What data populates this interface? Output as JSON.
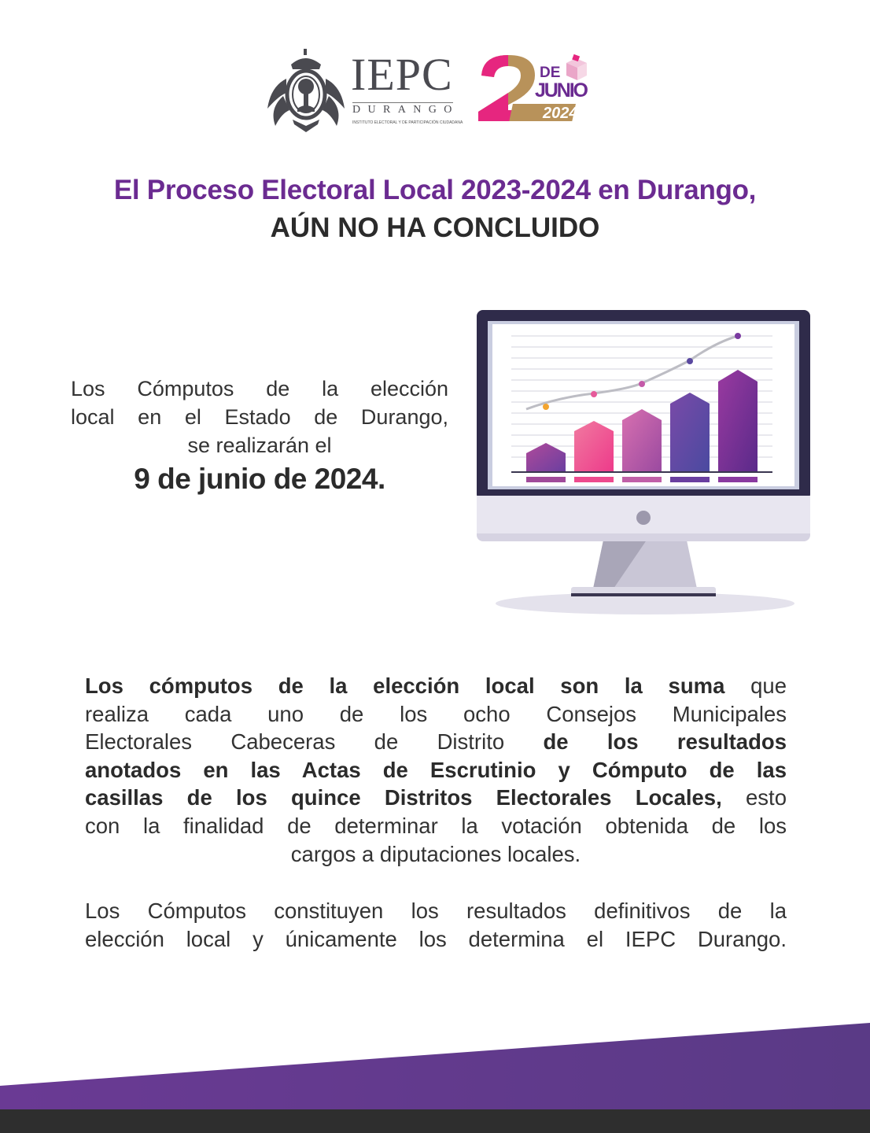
{
  "logos": {
    "iepc": {
      "name": "IEPC",
      "sub": "DURANGO",
      "tagline": "INSTITUTO ELECTORAL Y DE PARTICIPACIÓN CIUDADANA"
    },
    "election_day": {
      "number": "2",
      "de": "DE",
      "month": "JUNIO",
      "year": "2024"
    }
  },
  "title": {
    "line1": "El Proceso Electoral Local 2023-2024 en Durango,",
    "line2": "AÚN NO HA CONCLUIDO"
  },
  "announcement": {
    "lines": [
      "Los Cómputos de la elección",
      "local en el Estado de Durango,",
      "se realizarán el"
    ],
    "date": "9 de junio de 2024."
  },
  "illustration": {
    "icon": "desktop-monitor-bar-chart-icon"
  },
  "explanation": {
    "paragraph1": [
      [
        {
          "t": "Los cómputos de la elección local son la suma",
          "b": true
        },
        {
          "t": " que",
          "b": false
        }
      ],
      [
        {
          "t": "realiza cada uno de los ocho Consejos Municipales",
          "b": false
        }
      ],
      [
        {
          "t": "Electorales Cabeceras de Distrito ",
          "b": false
        },
        {
          "t": "de los resultados",
          "b": true
        }
      ],
      [
        {
          "t": "anotados en las Actas de Escrutinio y Cómputo de las",
          "b": true
        }
      ],
      [
        {
          "t": "casillas de los quince Distritos Electorales Locales,",
          "b": true
        },
        {
          "t": " esto",
          "b": false
        }
      ],
      [
        {
          "t": "con la finalidad de determinar la votación obtenida de los",
          "b": false
        }
      ],
      [
        {
          "t": "cargos a diputaciones locales.",
          "b": false
        }
      ]
    ],
    "paragraph2": [
      [
        {
          "t": "Los Cómputos constituyen los resultados definitivos de la",
          "b": false
        }
      ],
      [
        {
          "t": "elección local y únicamente los determina el IEPC Durango.",
          "b": false
        }
      ]
    ]
  },
  "colors": {
    "purple": "#6b2b91",
    "pink": "#e6267f",
    "gold": "#b8925a",
    "dark": "#2b2b2b",
    "footer_band": "#5e3a8a",
    "footer_strip": "#2e2e2e"
  }
}
